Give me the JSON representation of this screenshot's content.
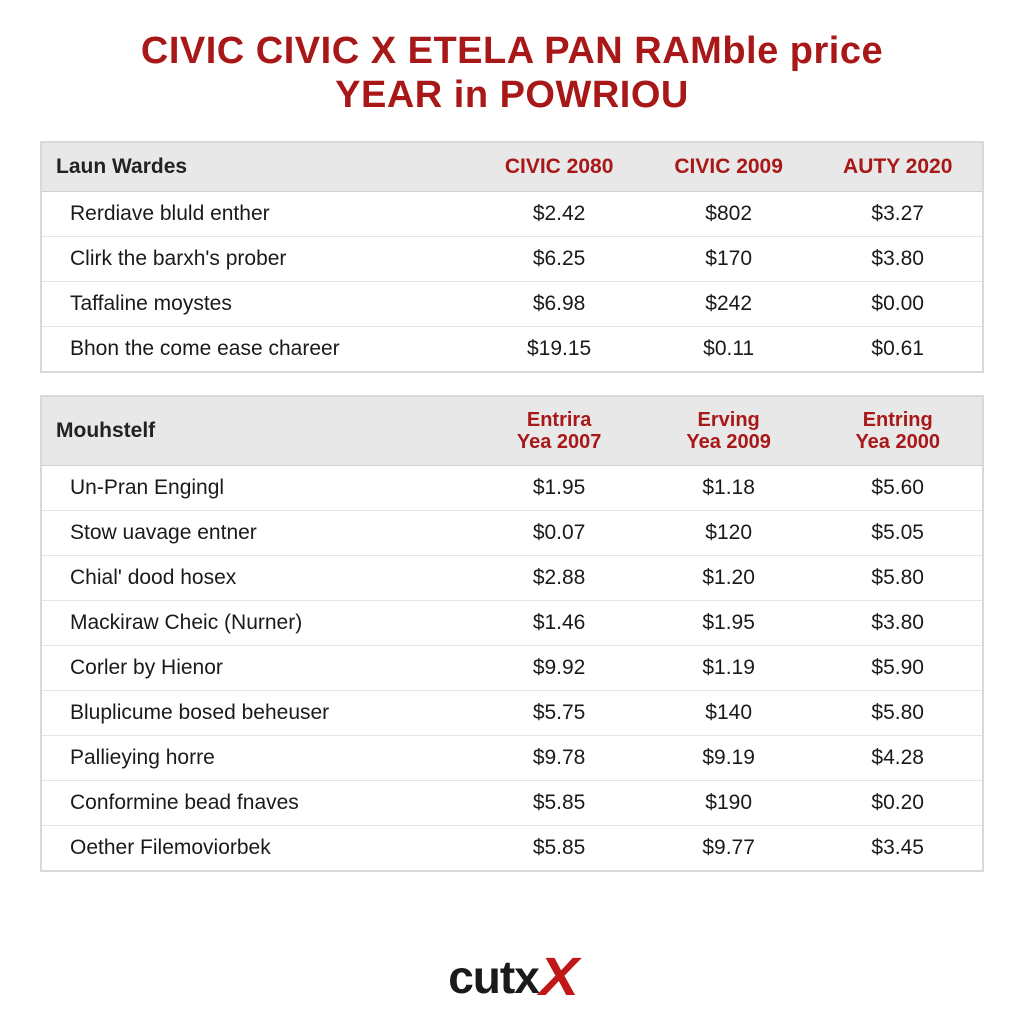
{
  "title_line1": "CIVIC CIVIC X ETELA PAN RAMble price",
  "title_line2": "YEAR in POWRIOU",
  "colors": {
    "accent": "#a81818",
    "header_bg": "#e8e8e8",
    "border": "#d9d9d9",
    "row_border": "#e6e6e6",
    "text": "#1a1a1a",
    "background": "#ffffff"
  },
  "table1": {
    "corner_label": "Laun Wardes",
    "columns": [
      "CIVIC 2080",
      "CIVIC 2009",
      "AUTY 2020"
    ],
    "rows": [
      {
        "label": "Rerdiave bluld enther",
        "v": [
          "$2.42",
          "$802",
          "$3.27"
        ]
      },
      {
        "label": "Clirk the barxh's prober",
        "v": [
          "$6.25",
          "$170",
          "$3.80"
        ]
      },
      {
        "label": "Taffaline moystes",
        "v": [
          "$6.98",
          "$242",
          "$0.00"
        ]
      },
      {
        "label": "Bhon the come ease chareer",
        "v": [
          "$19.15",
          "$0.11",
          "$0.61"
        ]
      }
    ]
  },
  "table2": {
    "corner_label": "Mouhstelf",
    "columns_line1": [
      "Entrira",
      "Erving",
      "Entring"
    ],
    "columns_line2": [
      "Yea 2007",
      "Yea 2009",
      "Yea 2000"
    ],
    "rows": [
      {
        "label": "Un-Pran Engingl",
        "v": [
          "$1.95",
          "$1.18",
          "$5.60"
        ]
      },
      {
        "label": "Stow uavage entner",
        "v": [
          "$0.07",
          "$120",
          "$5.05"
        ]
      },
      {
        "label": "Chial' dood hosex",
        "v": [
          "$2.88",
          "$1.20",
          "$5.80"
        ]
      },
      {
        "label": "Mackiraw Cheic (Nurner)",
        "v": [
          "$1.46",
          "$1.95",
          "$3.80"
        ]
      },
      {
        "label": "Corler by Hienor",
        "v": [
          "$9.92",
          "$1.19",
          "$5.90"
        ]
      },
      {
        "label": "Bluplicume bosed beheuser",
        "v": [
          "$5.75",
          "$140",
          "$5.80"
        ]
      },
      {
        "label": "Pallieying horre",
        "v": [
          "$9.78",
          "$9.19",
          "$4.28"
        ]
      },
      {
        "label": "Conformine bead fnaves",
        "v": [
          "$5.85",
          "$190",
          "$0.20"
        ]
      },
      {
        "label": "Oether Filemoviorbek",
        "v": [
          "$5.85",
          "$9.77",
          "$3.45"
        ]
      }
    ]
  },
  "logo": {
    "text": "cutx",
    "mark": "X"
  }
}
